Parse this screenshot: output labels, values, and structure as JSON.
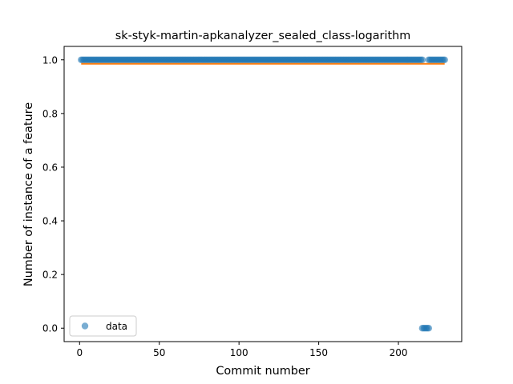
{
  "chart_data": {
    "type": "scatter",
    "title": "sk-styk-martin-apkanalyzer_sealed_class-logarithm",
    "xlabel": "Commit number",
    "ylabel": "Number of instance of a feature",
    "xlim": [
      -9.7,
      239.7
    ],
    "ylim": [
      -0.05,
      1.05
    ],
    "xticks": [
      0,
      50,
      100,
      150,
      200
    ],
    "yticks": [
      0.0,
      0.2,
      0.4,
      0.6,
      0.8,
      1.0
    ],
    "xtick_labels": [
      "0",
      "50",
      "100",
      "150",
      "200"
    ],
    "ytick_labels": [
      "0.0",
      "0.2",
      "0.4",
      "0.6",
      "0.8",
      "1.0"
    ],
    "legend": {
      "position": "lower-left",
      "entries": [
        "data"
      ]
    },
    "series": [
      {
        "name": "data",
        "kind": "points",
        "color": "#1f77b4",
        "segments": [
          {
            "x_start": 1,
            "x_end": 215,
            "y": 1.0
          },
          {
            "x_start": 215,
            "x_end": 219,
            "y": 0.0
          },
          {
            "x_start": 219,
            "x_end": 229,
            "y": 1.0
          }
        ]
      },
      {
        "kind": "line",
        "color": "#ff7f0e",
        "x": [
          1,
          229
        ],
        "y": [
          0.985,
          0.985
        ]
      }
    ],
    "grid": false
  }
}
